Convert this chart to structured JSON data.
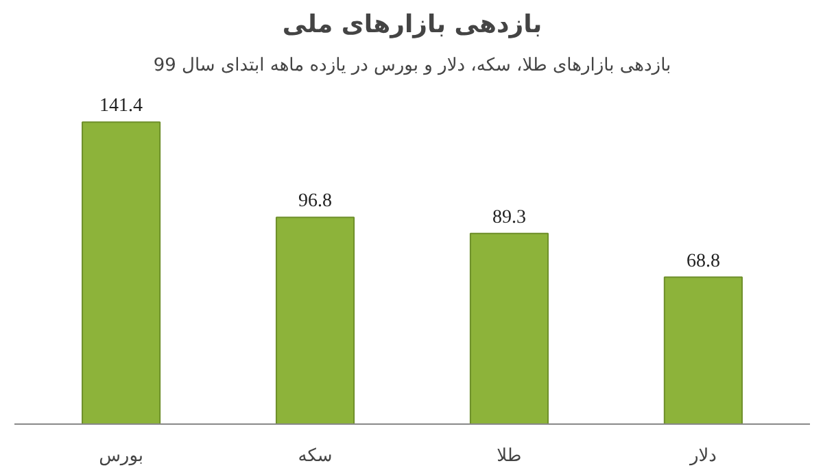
{
  "chart_data": {
    "type": "bar",
    "title": "بازدهی بازارهای ملی",
    "subtitle": "بازدهی بازارهای طلا، سکه، دلار و بورس در یازده ماهه ابتدای سال 99",
    "categories": [
      "بورس",
      "سکه",
      "طلا",
      "دلار"
    ],
    "values": [
      141.4,
      96.8,
      89.3,
      68.8
    ],
    "color": "#8db33a",
    "data_labels": true
  }
}
